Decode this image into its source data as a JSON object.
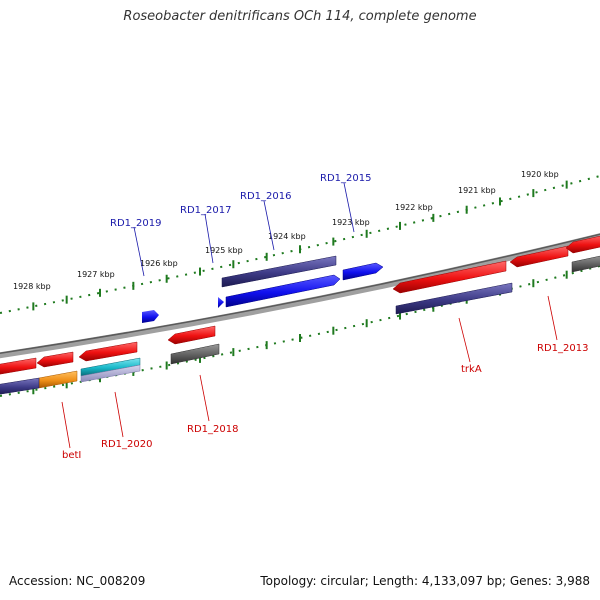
{
  "title": "Roseobacter denitrificans OCh 114, complete genome",
  "footer": {
    "accession": "Accession: NC_008209",
    "summary": "Topology: circular; Length: 4,133,097 bp; Genes: 3,988"
  },
  "ruler_labels": [
    "1928 kbp",
    "1927 kbp",
    "1926 kbp",
    "1925 kbp",
    "1924 kbp",
    "1923 kbp",
    "1922 kbp",
    "1921 kbp",
    "1920 kbp"
  ],
  "gene_labels_top": [
    "RD1_2019",
    "RD1_2017",
    "RD1_2016",
    "RD1_2015"
  ],
  "gene_labels_bottom": [
    "betI",
    "RD1_2020",
    "RD1_2018",
    "trkA",
    "RD1_2013"
  ],
  "colors": {
    "label_top": "#1a1aaa",
    "label_bottom": "#cc0000",
    "ruler": "#1f7a1f",
    "gene_red": "#ee1111",
    "gene_navy": "#3d3a86",
    "gene_blue": "#1010ee",
    "gene_gray": "#606060",
    "gene_cyan": "#18b8c8",
    "gene_orange": "#f09018",
    "backbone": "#888888"
  }
}
